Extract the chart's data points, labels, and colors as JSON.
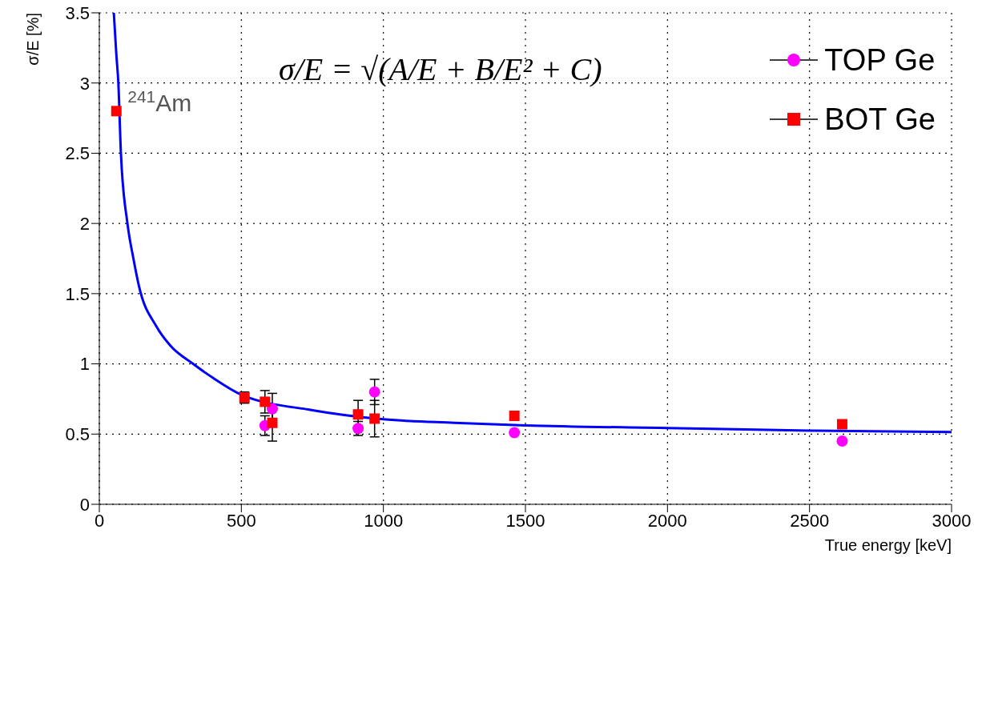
{
  "chart_data": {
    "type": "scatter",
    "xlabel": "True energy [keV]",
    "ylabel": "σ/E [%]",
    "xlim": [
      0,
      3000
    ],
    "xticks": [
      0,
      500,
      1000,
      1500,
      2000,
      2500,
      3000
    ],
    "ylim": [
      0,
      3.5
    ],
    "yticks": [
      0,
      0.5,
      1,
      1.5,
      2,
      2.5,
      3,
      3.5
    ],
    "grid": true,
    "legend": "top right",
    "series": [
      {
        "name": "TOP Ge",
        "marker": "circle",
        "color": "#ff00ff",
        "x": [
          583,
          609,
          911,
          969,
          1461,
          2615
        ],
        "values": [
          0.56,
          0.68,
          0.54,
          0.8,
          0.51,
          0.45
        ],
        "errors": [
          0.07,
          0.11,
          0.05,
          0.09,
          null,
          null
        ]
      },
      {
        "name": "BOT Ge",
        "marker": "square",
        "color": "#ff0000",
        "x": [
          60,
          511,
          583,
          609,
          911,
          969,
          1461,
          2615
        ],
        "values": [
          2.8,
          0.76,
          0.73,
          0.58,
          0.64,
          0.61,
          0.63,
          0.57
        ],
        "errors": [
          null,
          0.04,
          0.08,
          0.13,
          0.1,
          0.13,
          null,
          null
        ]
      },
      {
        "type": "line",
        "marker": "none",
        "color": "#0000ff",
        "x": [
          51,
          60,
          67,
          76,
          99,
          120,
          140,
          200,
          250,
          330,
          400,
          500,
          750,
          1000,
          1250,
          1500,
          2000,
          2500,
          3000
        ],
        "values": [
          3.5,
          3.2,
          3.0,
          2.5,
          2.0,
          1.75,
          1.55,
          1.27,
          1.13,
          1.0,
          0.9,
          0.78,
          0.67,
          0.605,
          0.58,
          0.562,
          0.543,
          0.525,
          0.515
        ]
      }
    ],
    "annotations": [
      {
        "text": "$^{241}$Am",
        "x": 60,
        "y": 2.8
      },
      "σ/E = √(A/E + B/E² + C)"
    ]
  }
}
